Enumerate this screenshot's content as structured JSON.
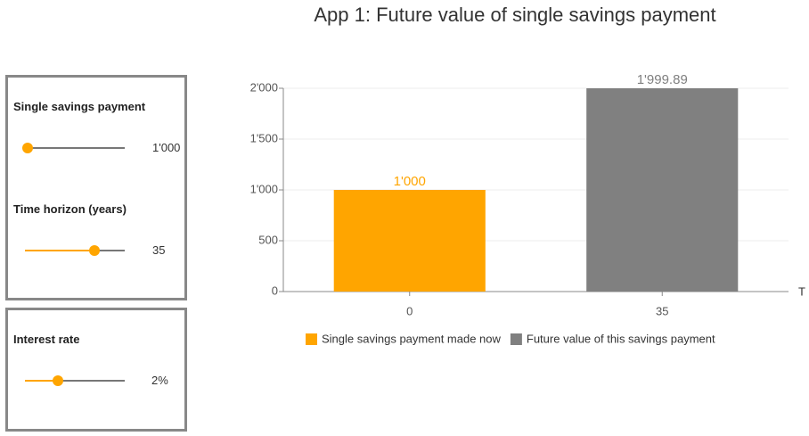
{
  "title": "App 1: Future value of single savings payment",
  "controls": [
    {
      "label": "Single savings payment",
      "display": "1'000"
    },
    {
      "label": "Time horizon (years)",
      "display": "35"
    },
    {
      "label": "Interest rate",
      "display": "2%"
    }
  ],
  "chart_data": {
    "type": "bar",
    "categories": [
      "0",
      "35"
    ],
    "x_label": "T",
    "series": [
      {
        "name": "Single savings payment made now",
        "color": "#ffa500",
        "values": [
          1000,
          null
        ],
        "value_labels": [
          "1'000",
          null
        ]
      },
      {
        "name": "Future value of this savings payment",
        "color": "#808080",
        "values": [
          null,
          1999.89
        ],
        "value_labels": [
          null,
          "1'999.89"
        ]
      }
    ],
    "ylim": [
      0,
      2000
    ],
    "yticks": [
      0,
      500,
      {
        "value": 1000,
        "label": "1'000"
      },
      {
        "value": 1500,
        "label": "1'500"
      },
      {
        "value": 2000,
        "label": "2'000"
      }
    ],
    "grid": true,
    "legend": "bottom"
  }
}
